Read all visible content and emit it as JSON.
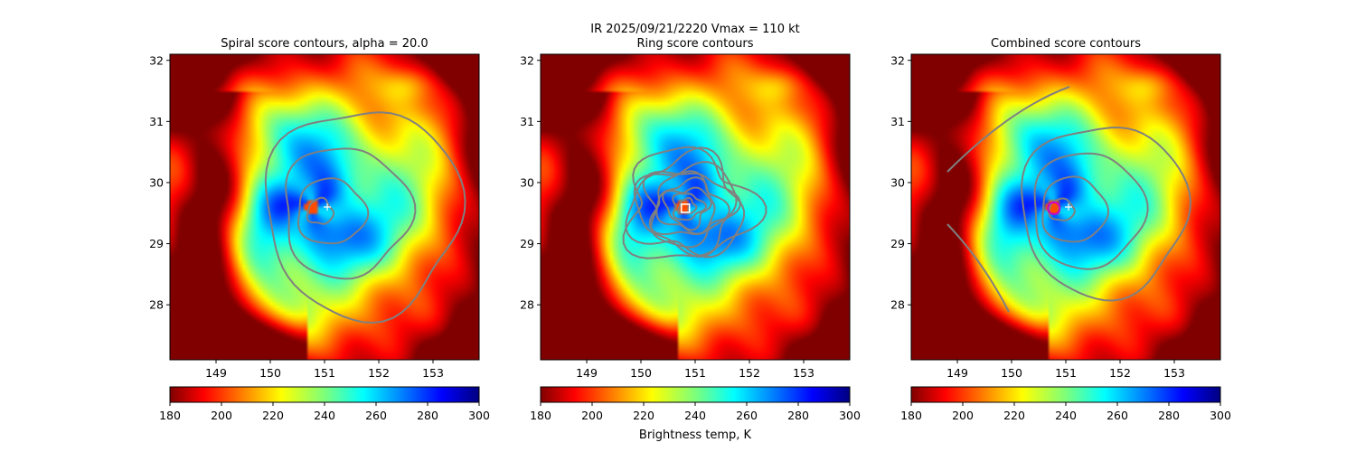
{
  "suptitle_line1": "IR  2025/09/21/2220    Vmax = 110 kt",
  "colorbar_label": "Brightness temp, K",
  "colors": {
    "contour": "#808080",
    "center_marker": "#ffffff",
    "combined_ring": "#cc00cc"
  },
  "chart_data": [
    {
      "type": "heatmap",
      "title": "Spiral score contours, alpha = 20.0",
      "contour_style": "spiral",
      "xticks": [
        "149",
        "150",
        "151",
        "152",
        "153"
      ],
      "yticks": [
        "28",
        "29",
        "30",
        "31",
        "32"
      ],
      "xlim": [
        148.15,
        153.85
      ],
      "ylim": [
        27.1,
        32.1
      ],
      "center_lon": 150.8,
      "center_lat": 29.58,
      "plus_lon": 151.05,
      "plus_lat": 29.6,
      "colorbar": {
        "ticks": [
          "180",
          "200",
          "220",
          "240",
          "260",
          "280",
          "300"
        ],
        "range": [
          180,
          300
        ]
      }
    },
    {
      "type": "heatmap",
      "title": "Ring score contours",
      "contour_style": "ring",
      "xticks": [
        "149",
        "150",
        "151",
        "152",
        "153"
      ],
      "yticks": [
        "28",
        "29",
        "30",
        "31",
        "32"
      ],
      "xlim": [
        148.15,
        153.85
      ],
      "ylim": [
        27.1,
        32.1
      ],
      "center_lon": 150.82,
      "center_lat": 29.58,
      "colorbar": {
        "ticks": [
          "180",
          "200",
          "220",
          "240",
          "260",
          "280",
          "300"
        ],
        "range": [
          180,
          300
        ]
      }
    },
    {
      "type": "heatmap",
      "title": "Combined score contours",
      "contour_style": "combined",
      "xticks": [
        "149",
        "150",
        "151",
        "152",
        "153"
      ],
      "yticks": [
        "28",
        "29",
        "30",
        "31",
        "32"
      ],
      "xlim": [
        148.15,
        153.85
      ],
      "ylim": [
        27.1,
        32.1
      ],
      "center_lon": 150.78,
      "center_lat": 29.58,
      "plus_lon": 151.05,
      "plus_lat": 29.6,
      "colorbar": {
        "ticks": [
          "180",
          "200",
          "220",
          "240",
          "260",
          "280",
          "300"
        ],
        "range": [
          180,
          300
        ]
      }
    }
  ]
}
